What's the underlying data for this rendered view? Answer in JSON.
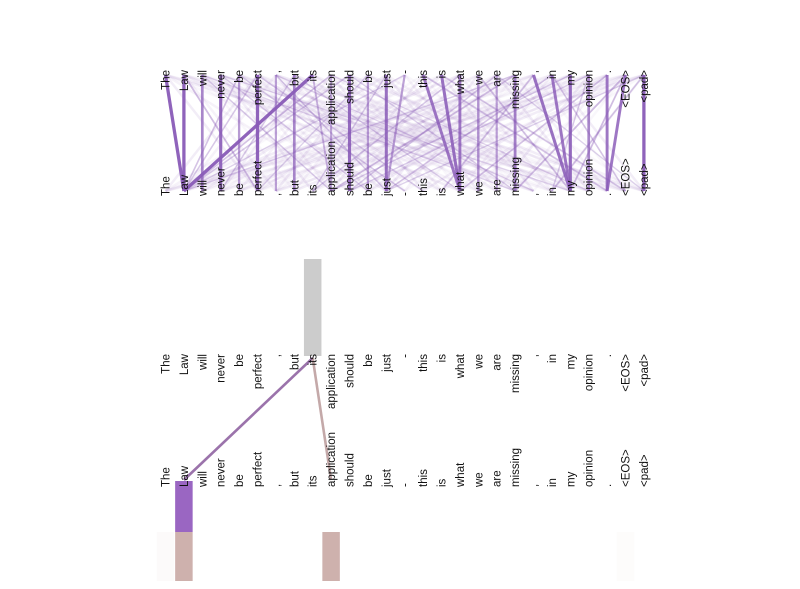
{
  "tokens": [
    "The",
    "Law",
    "will",
    "never",
    "be",
    "perfect",
    ",",
    "but",
    "its",
    "application",
    "should",
    "be",
    "just",
    "-",
    "this",
    "is",
    "what",
    "we",
    "are",
    "missing",
    ",",
    "in",
    "my",
    "opinion",
    ".",
    "<EOS>",
    "<pad>"
  ],
  "colors": {
    "background": "#ffffff",
    "text": "#111111",
    "attention_purple": "#8a5cb8",
    "highlight_purple": "#9a66c2",
    "highlight_pink": "#c9a8a4",
    "focus_gray": "#cccccc",
    "line_to_law": "#8a5a9c",
    "line_to_application": "#b08c8c"
  },
  "full_attention": {
    "links": [
      {
        "from": 0,
        "to": 1,
        "w": 0.95
      },
      {
        "from": 1,
        "to": 1,
        "w": 0.95
      },
      {
        "from": 2,
        "to": 2,
        "w": 0.7
      },
      {
        "from": 3,
        "to": 3,
        "w": 0.9
      },
      {
        "from": 4,
        "to": 4,
        "w": 0.55
      },
      {
        "from": 5,
        "to": 5,
        "w": 0.95
      },
      {
        "from": 6,
        "to": 6,
        "w": 0.5
      },
      {
        "from": 7,
        "to": 7,
        "w": 0.7
      },
      {
        "from": 8,
        "to": 1,
        "w": 0.95
      },
      {
        "from": 9,
        "to": 9,
        "w": 0.45
      },
      {
        "from": 10,
        "to": 10,
        "w": 0.9
      },
      {
        "from": 11,
        "to": 11,
        "w": 0.5
      },
      {
        "from": 12,
        "to": 12,
        "w": 0.85
      },
      {
        "from": 13,
        "to": 12,
        "w": 0.5
      },
      {
        "from": 14,
        "to": 16,
        "w": 0.8
      },
      {
        "from": 15,
        "to": 16,
        "w": 0.85
      },
      {
        "from": 16,
        "to": 16,
        "w": 0.8
      },
      {
        "from": 17,
        "to": 17,
        "w": 0.6
      },
      {
        "from": 18,
        "to": 18,
        "w": 0.5
      },
      {
        "from": 19,
        "to": 19,
        "w": 0.75
      },
      {
        "from": 20,
        "to": 22,
        "w": 0.85
      },
      {
        "from": 21,
        "to": 22,
        "w": 0.8
      },
      {
        "from": 22,
        "to": 22,
        "w": 0.9
      },
      {
        "from": 23,
        "to": 23,
        "w": 0.7
      },
      {
        "from": 24,
        "to": 24,
        "w": 0.8
      },
      {
        "from": 25,
        "to": 24,
        "w": 0.8
      },
      {
        "from": 26,
        "to": 26,
        "w": 0.95
      },
      {
        "from": 1,
        "to": 5,
        "w": 0.3
      },
      {
        "from": 2,
        "to": 9,
        "w": 0.2
      },
      {
        "from": 2,
        "to": 19,
        "w": 0.12
      },
      {
        "from": 3,
        "to": 11,
        "w": 0.18
      },
      {
        "from": 3,
        "to": 22,
        "w": 0.12
      },
      {
        "from": 4,
        "to": 1,
        "w": 0.25
      },
      {
        "from": 4,
        "to": 13,
        "w": 0.2
      },
      {
        "from": 5,
        "to": 1,
        "w": 0.22
      },
      {
        "from": 5,
        "to": 14,
        "w": 0.18
      },
      {
        "from": 6,
        "to": 12,
        "w": 0.2
      },
      {
        "from": 6,
        "to": 20,
        "w": 0.12
      },
      {
        "from": 7,
        "to": 3,
        "w": 0.2
      },
      {
        "from": 7,
        "to": 16,
        "w": 0.15
      },
      {
        "from": 8,
        "to": 9,
        "w": 0.35
      },
      {
        "from": 9,
        "to": 1,
        "w": 0.25
      },
      {
        "from": 9,
        "to": 23,
        "w": 0.12
      },
      {
        "from": 10,
        "to": 1,
        "w": 0.2
      },
      {
        "from": 10,
        "to": 19,
        "w": 0.15
      },
      {
        "from": 11,
        "to": 5,
        "w": 0.15
      },
      {
        "from": 12,
        "to": 8,
        "w": 0.2
      },
      {
        "from": 13,
        "to": 1,
        "w": 0.15
      },
      {
        "from": 14,
        "to": 24,
        "w": 0.18
      },
      {
        "from": 15,
        "to": 25,
        "w": 0.2
      },
      {
        "from": 16,
        "to": 8,
        "w": 0.2
      },
      {
        "from": 17,
        "to": 22,
        "w": 0.25
      },
      {
        "from": 18,
        "to": 10,
        "w": 0.2
      },
      {
        "from": 18,
        "to": 26,
        "w": 0.15
      },
      {
        "from": 19,
        "to": 9,
        "w": 0.25
      },
      {
        "from": 20,
        "to": 15,
        "w": 0.2
      },
      {
        "from": 21,
        "to": 25,
        "w": 0.25
      },
      {
        "from": 22,
        "to": 9,
        "w": 0.2
      },
      {
        "from": 23,
        "to": 21,
        "w": 0.2
      },
      {
        "from": 24,
        "to": 16,
        "w": 0.25
      },
      {
        "from": 25,
        "to": 19,
        "w": 0.3
      },
      {
        "from": 25,
        "to": 22,
        "w": 0.3
      },
      {
        "from": 26,
        "to": 12,
        "w": 0.15
      },
      {
        "from": 26,
        "to": 21,
        "w": 0.2
      },
      {
        "from": 23,
        "to": 10,
        "w": 0.18
      },
      {
        "from": 21,
        "to": 12,
        "w": 0.22
      },
      {
        "from": 19,
        "to": 1,
        "w": 0.18
      }
    ]
  },
  "focused_attention": {
    "selected_token_index": 8,
    "links": [
      {
        "to": 1,
        "color": "line_to_law",
        "w": 0.85
      },
      {
        "to": 9,
        "color": "line_to_application",
        "w": 0.75
      }
    ],
    "bottom_highlights": [
      {
        "index": 1,
        "color": "highlight_purple",
        "strength": 1.0
      },
      {
        "index": 1,
        "color": "highlight_pink",
        "strength": 0.9,
        "row": "lower"
      },
      {
        "index": 9,
        "color": "highlight_pink",
        "strength": 0.9,
        "row": "lower"
      },
      {
        "index": 0,
        "color": "highlight_pink",
        "strength": 0.06,
        "row": "lower"
      },
      {
        "index": 25,
        "color": "highlight_pink",
        "strength": 0.04,
        "row": "lower"
      }
    ]
  }
}
